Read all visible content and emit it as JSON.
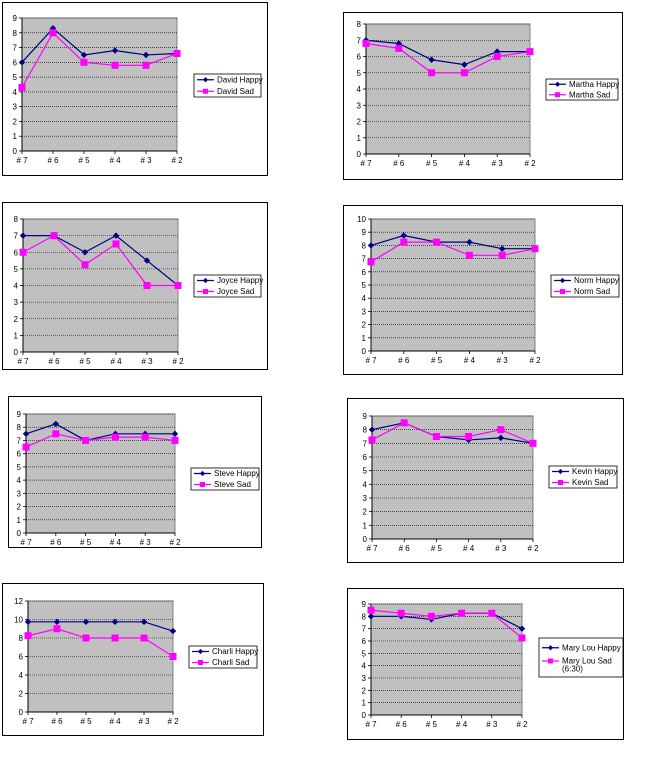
{
  "chart_data": [
    {
      "type": "line",
      "title": "",
      "categories": [
        "# 7",
        "# 6",
        "# 5",
        "# 4",
        "# 3",
        "# 2"
      ],
      "ylim": [
        0,
        9
      ],
      "ystep": 1,
      "grid": true,
      "legend": "right",
      "series": [
        {
          "name": "David Happy",
          "color": "#000080",
          "marker": "diamond",
          "values": [
            6,
            8.3,
            6.5,
            6.8,
            6.5,
            6.6
          ]
        },
        {
          "name": "David Sad",
          "color": "#FF00FF",
          "marker": "square",
          "values": [
            4.3,
            8,
            6,
            5.8,
            5.8,
            6.6
          ]
        }
      ]
    },
    {
      "type": "line",
      "title": "",
      "categories": [
        "# 7",
        "# 6",
        "# 5",
        "# 4",
        "# 3",
        "# 2"
      ],
      "ylim": [
        0,
        8
      ],
      "ystep": 1,
      "grid": true,
      "legend": "right",
      "series": [
        {
          "name": "Martha Happy",
          "color": "#000080",
          "marker": "diamond",
          "values": [
            7,
            6.8,
            5.8,
            5.5,
            6.3,
            6.3
          ]
        },
        {
          "name": "Martha Sad",
          "color": "#FF00FF",
          "marker": "square",
          "values": [
            6.8,
            6.5,
            5,
            5,
            6,
            6.3
          ]
        }
      ]
    },
    {
      "type": "line",
      "title": "",
      "categories": [
        "# 7",
        "# 6",
        "# 5",
        "# 4",
        "# 3",
        "# 2"
      ],
      "ylim": [
        0,
        8
      ],
      "ystep": 1,
      "grid": true,
      "legend": "right",
      "series": [
        {
          "name": "Joyce Happy",
          "color": "#000080",
          "marker": "diamond",
          "values": [
            7,
            7,
            6,
            7,
            5.5,
            4
          ]
        },
        {
          "name": "Joyce Sad",
          "color": "#FF00FF",
          "marker": "square",
          "values": [
            6,
            7,
            5.25,
            6.5,
            4,
            4
          ]
        }
      ]
    },
    {
      "type": "line",
      "title": "",
      "categories": [
        "# 7",
        "# 6",
        "# 5",
        "# 4",
        "# 3",
        "# 2"
      ],
      "ylim": [
        0,
        10
      ],
      "ystep": 1,
      "grid": true,
      "legend": "right",
      "series": [
        {
          "name": "Norm Happy",
          "color": "#000080",
          "marker": "diamond",
          "values": [
            8,
            8.75,
            8.25,
            8.25,
            7.75,
            7.75
          ]
        },
        {
          "name": "Norm Sad",
          "color": "#FF00FF",
          "marker": "square",
          "values": [
            6.75,
            8.25,
            8.25,
            7.25,
            7.25,
            7.75
          ]
        }
      ]
    },
    {
      "type": "line",
      "title": "",
      "categories": [
        "# 7",
        "# 6",
        "# 5",
        "# 4",
        "# 3",
        "# 2"
      ],
      "ylim": [
        0,
        9
      ],
      "ystep": 1,
      "grid": true,
      "legend": "right",
      "series": [
        {
          "name": "Steve Happy",
          "color": "#000080",
          "marker": "diamond",
          "values": [
            7.5,
            8.25,
            7,
            7.5,
            7.5,
            7.5
          ]
        },
        {
          "name": "Steve Sad",
          "color": "#FF00FF",
          "marker": "square",
          "values": [
            6.5,
            7.5,
            7,
            7.25,
            7.25,
            7
          ]
        }
      ]
    },
    {
      "type": "line",
      "title": "",
      "categories": [
        "# 7",
        "# 6",
        "# 5",
        "# 4",
        "# 3",
        "# 2"
      ],
      "ylim": [
        0,
        9
      ],
      "ystep": 1,
      "grid": true,
      "legend": "right",
      "series": [
        {
          "name": "Kevin Happy",
          "color": "#000080",
          "marker": "diamond",
          "values": [
            8,
            8.5,
            7.5,
            7.25,
            7.4,
            7
          ]
        },
        {
          "name": "Kevin Sad",
          "color": "#FF00FF",
          "marker": "square",
          "values": [
            7.25,
            8.5,
            7.5,
            7.5,
            8,
            7
          ]
        }
      ]
    },
    {
      "type": "line",
      "title": "",
      "categories": [
        "# 7",
        "# 6",
        "# 5",
        "# 4",
        "# 3",
        "# 2"
      ],
      "ylim": [
        0,
        12
      ],
      "ystep": 2,
      "grid": true,
      "legend": "right",
      "series": [
        {
          "name": "Charli Happy",
          "color": "#000080",
          "marker": "diamond",
          "values": [
            9.75,
            9.75,
            9.75,
            9.75,
            9.75,
            8.75
          ]
        },
        {
          "name": "Charli Sad",
          "color": "#FF00FF",
          "marker": "square",
          "values": [
            8.25,
            9,
            8,
            8,
            8,
            6
          ]
        }
      ]
    },
    {
      "type": "line",
      "title": "",
      "categories": [
        "# 7",
        "# 6",
        "# 5",
        "# 4",
        "# 3",
        "# 2"
      ],
      "ylim": [
        0,
        9
      ],
      "ystep": 1,
      "grid": true,
      "legend": "right",
      "series": [
        {
          "name": "Mary Lou Happy",
          "color": "#000080",
          "marker": "diamond",
          "values": [
            8,
            8,
            7.75,
            8.25,
            8.25,
            7
          ]
        },
        {
          "name": "Mary Lou Sad",
          "note": "(6:30)",
          "color": "#FF00FF",
          "marker": "square",
          "values": [
            8.5,
            8.25,
            8,
            8.25,
            8.25,
            6.25
          ]
        }
      ]
    }
  ]
}
